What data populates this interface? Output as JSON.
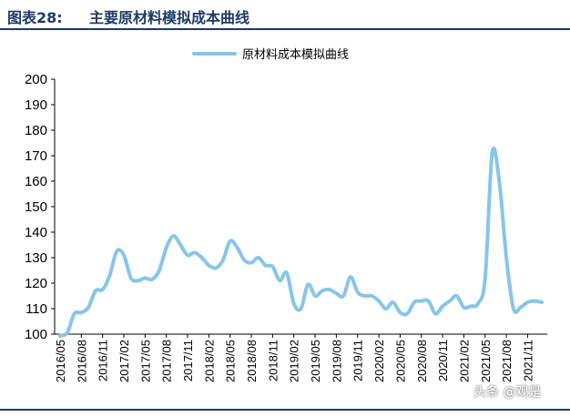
{
  "figure": {
    "number": "图表28:",
    "title": "主要原材料模拟成本曲线"
  },
  "watermark": "头条 @观是",
  "colors": {
    "line": "#88c5ea",
    "axis": "#000000",
    "header": "#1f3a66"
  },
  "chart_data": {
    "type": "line",
    "title": "",
    "xlabel": "",
    "ylabel": "",
    "ylim": [
      100,
      200
    ],
    "yticks": [
      100,
      110,
      120,
      130,
      140,
      150,
      160,
      170,
      180,
      190,
      200
    ],
    "grid": false,
    "legend_position": "top-center",
    "x_tick_labels": [
      "2016/05",
      "2016/08",
      "2016/11",
      "2017/02",
      "2017/05",
      "2017/08",
      "2017/11",
      "2018/02",
      "2018/05",
      "2018/08",
      "2018/11",
      "2019/02",
      "2019/05",
      "2019/08",
      "2019/11",
      "2020/02",
      "2020/05",
      "2020/08",
      "2020/11",
      "2021/02",
      "2021/05",
      "2021/08",
      "2021/11"
    ],
    "series": [
      {
        "name": "原材料成本模拟曲线",
        "x": [
          "2016/05",
          "2016/06",
          "2016/07",
          "2016/08",
          "2016/09",
          "2016/10",
          "2016/11",
          "2016/12",
          "2017/01",
          "2017/02",
          "2017/03",
          "2017/04",
          "2017/05",
          "2017/06",
          "2017/07",
          "2017/08",
          "2017/09",
          "2017/10",
          "2017/11",
          "2017/12",
          "2018/01",
          "2018/02",
          "2018/03",
          "2018/04",
          "2018/05",
          "2018/06",
          "2018/07",
          "2018/08",
          "2018/09",
          "2018/10",
          "2018/11",
          "2018/12",
          "2019/01",
          "2019/02",
          "2019/03",
          "2019/04",
          "2019/05",
          "2019/06",
          "2019/07",
          "2019/08",
          "2019/09",
          "2019/10",
          "2019/11",
          "2019/12",
          "2020/01",
          "2020/02",
          "2020/03",
          "2020/04",
          "2020/05",
          "2020/06",
          "2020/07",
          "2020/08",
          "2020/09",
          "2020/10",
          "2020/11",
          "2020/12",
          "2021/01",
          "2021/02",
          "2021/03",
          "2021/04",
          "2021/05",
          "2021/06",
          "2021/07",
          "2021/08",
          "2021/09",
          "2021/10",
          "2021/11",
          "2021/12",
          "2022/01"
        ],
        "values": [
          99.5,
          100.5,
          108,
          108.5,
          110.5,
          117,
          117.5,
          123,
          132.5,
          131,
          122,
          121,
          122,
          121.5,
          125,
          134,
          138.5,
          135,
          131,
          132,
          130,
          127,
          126,
          129,
          136.5,
          134,
          129,
          128,
          130,
          127,
          126.5,
          121,
          124,
          112,
          110,
          119.5,
          115,
          117,
          117.5,
          116,
          115,
          122.5,
          116.5,
          115,
          115,
          113,
          110,
          112.5,
          108.5,
          108,
          112.5,
          113,
          113,
          108,
          111,
          113,
          115,
          110.5,
          111,
          112,
          122,
          171,
          160,
          130,
          110,
          110.5,
          112.5,
          113,
          112.5
        ]
      }
    ]
  }
}
